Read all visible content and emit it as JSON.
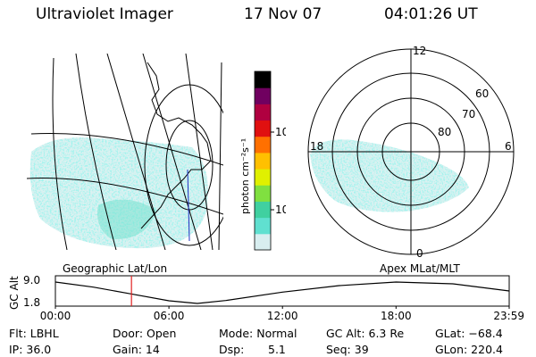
{
  "header": {
    "instrument": "Ultraviolet Imager",
    "date": "17 Nov 07",
    "time": "04:01:26 UT"
  },
  "map_labels": {
    "left": "Geographic Lat/Lon",
    "right": "Apex MLat/MLT"
  },
  "colorbar": {
    "unit": "photon cm⁻²s⁻¹",
    "ticks": [
      "100",
      "10"
    ],
    "colors": [
      "#d8eef0",
      "#60e0d0",
      "#40d0a0",
      "#80e040",
      "#e0f000",
      "#ffc000",
      "#ff7000",
      "#e01010",
      "#b00040",
      "#700060",
      "#000000"
    ]
  },
  "polar_plot": {
    "mlt_labels": {
      "top": "12",
      "right": "6",
      "bottom": "0",
      "left": "18"
    },
    "lat_labels": [
      "60",
      "70",
      "80"
    ]
  },
  "chart_data": {
    "type": "line",
    "ylabel": "GC Alt",
    "y_ticks": [
      "9.0",
      "1.8"
    ],
    "ylim": [
      1.8,
      9.0
    ],
    "x_ticks": [
      "00:00",
      "06:00",
      "12:00",
      "18:00",
      "23:59"
    ],
    "series": [
      {
        "x": [
          0,
          2,
          4,
          6,
          7.5,
          9,
          12,
          15,
          18,
          21,
          23.98
        ],
        "y": [
          9.0,
          7.3,
          5.0,
          2.7,
          1.8,
          2.8,
          5.6,
          7.8,
          9.0,
          8.4,
          6.0
        ]
      }
    ],
    "marker_time": 4.02
  },
  "footer": {
    "row1": {
      "flt": "Flt: LBHL",
      "door": "Door: Open",
      "mode": "Mode: Normal",
      "gcalt": "GC Alt: 6.3 Re",
      "glat": "GLat: −68.4"
    },
    "row2": {
      "ip": "IP: 36.0",
      "gain": "Gain: 14",
      "dsp_label": "Dsp:",
      "dsp_value": "5.1",
      "seq": "Seq: 39",
      "glon": "GLon: 220.4"
    }
  }
}
